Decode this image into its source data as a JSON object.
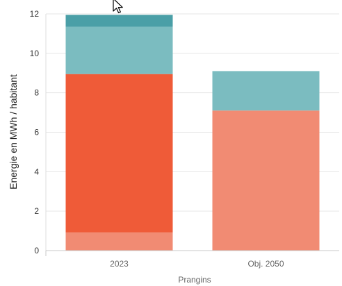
{
  "chart_data": {
    "type": "bar",
    "stacked": true,
    "categories": [
      "2023",
      "Obj. 2050"
    ],
    "xlabel": "Prangins",
    "ylabel": "Energie en MWh / habitant",
    "ylim": [
      0,
      12
    ],
    "yticks": [
      0,
      2,
      4,
      6,
      8,
      10,
      12
    ],
    "grid": true,
    "series": [
      {
        "values": [
          0.92,
          7.1
        ],
        "color": "#f18b73"
      },
      {
        "values": [
          8.03,
          0
        ],
        "color": "#ef5b38"
      },
      {
        "values": [
          2.4,
          2.0
        ],
        "color": "#7bbcc0"
      },
      {
        "values": [
          0.6,
          0
        ],
        "color": "#4a9fa7"
      }
    ]
  }
}
